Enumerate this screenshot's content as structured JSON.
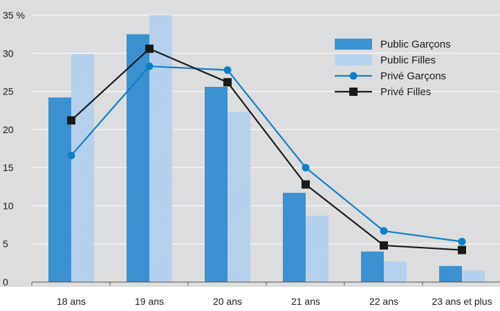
{
  "chart_data": {
    "type": "bar",
    "y_unit_label": "%",
    "ylim": [
      0,
      35
    ],
    "yticks": [
      0,
      5,
      10,
      15,
      20,
      25,
      30,
      35
    ],
    "categories": [
      "18 ans",
      "19 ans",
      "20 ans",
      "21 ans",
      "22 ans",
      "23 ans et plus"
    ],
    "bar_series": [
      {
        "name": "Public Garçons",
        "values": [
          24.2,
          32.5,
          25.6,
          11.7,
          4.0,
          2.1
        ]
      },
      {
        "name": "Public Filles",
        "values": [
          29.9,
          35.0,
          22.3,
          8.7,
          2.7,
          1.5
        ]
      }
    ],
    "line_series": [
      {
        "name": "Privé Garçons",
        "values": [
          16.6,
          28.3,
          27.8,
          15.0,
          6.7,
          5.3
        ],
        "marker": "circle"
      },
      {
        "name": "Privé Filles",
        "values": [
          21.2,
          30.6,
          26.2,
          12.8,
          4.8,
          4.2
        ],
        "marker": "square"
      }
    ],
    "grid": true,
    "legend_position": "top-right",
    "colors": {
      "background": "#dcdddf",
      "public_garcons": "#3e93d2",
      "public_filles": "#b7d2ee",
      "prive_garcons": "#0f7fc7",
      "prive_filles": "#1a1a1a",
      "gridline": "#ffffff"
    }
  }
}
